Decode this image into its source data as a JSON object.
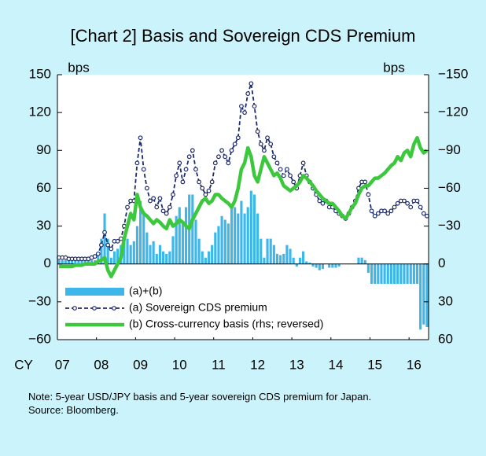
{
  "chart_data": {
    "type": "combo",
    "title": "[Chart 2] Basis and Sovereign CDS Premium",
    "ylabel": "bps",
    "y2label": "bps",
    "x_label": "CY",
    "categories": [
      "07",
      null,
      null,
      null,
      null,
      null,
      null,
      null,
      null,
      null,
      null,
      null,
      "08",
      null,
      null,
      null,
      null,
      null,
      null,
      null,
      null,
      null,
      null,
      null,
      "09",
      null,
      null,
      null,
      null,
      null,
      null,
      null,
      null,
      null,
      null,
      null,
      "10",
      null,
      null,
      null,
      null,
      null,
      null,
      null,
      null,
      null,
      null,
      null,
      "11",
      null,
      null,
      null,
      null,
      null,
      null,
      null,
      null,
      null,
      null,
      null,
      "12",
      null,
      null,
      null,
      null,
      null,
      null,
      null,
      null,
      null,
      null,
      null,
      "13",
      null,
      null,
      null,
      null,
      null,
      null,
      null,
      null,
      null,
      null,
      null,
      "14",
      null,
      null,
      null,
      null,
      null,
      null,
      null,
      null,
      null,
      null,
      null,
      "15",
      null,
      null,
      null,
      null,
      null,
      null,
      null,
      null,
      null,
      null,
      null,
      "16",
      null,
      null,
      null,
      null,
      null
    ],
    "series": [
      {
        "name": "(a)+(b)",
        "type": "bar",
        "color": "#3db6ea",
        "values": [
          3,
          3,
          3,
          3,
          3,
          3,
          3,
          3,
          3,
          3,
          3,
          3,
          8,
          20,
          40,
          20,
          5,
          10,
          12,
          15,
          18,
          20,
          15,
          18,
          30,
          50,
          40,
          25,
          15,
          18,
          8,
          15,
          10,
          8,
          10,
          22,
          38,
          45,
          32,
          45,
          55,
          55,
          35,
          20,
          10,
          5,
          10,
          15,
          25,
          30,
          38,
          35,
          32,
          45,
          45,
          40,
          50,
          40,
          45,
          58,
          55,
          40,
          20,
          5,
          20,
          20,
          15,
          8,
          7,
          8,
          15,
          12,
          5,
          -2,
          5,
          10,
          2,
          1,
          -2,
          -3,
          -5,
          -4,
          0,
          -3,
          -3,
          -3,
          -2,
          0,
          0,
          0,
          0,
          0,
          5,
          5,
          3,
          -7,
          -23,
          -30,
          -28,
          -28,
          -30,
          -35,
          -36,
          -35,
          -37,
          -32,
          -38,
          -42,
          -40,
          -50,
          -55,
          -52,
          -48,
          -50
        ]
      },
      {
        "name": "(a) Sovereign CDS premium",
        "type": "line",
        "dashed": true,
        "marker": "circle",
        "color": "#1c2a6e",
        "values": [
          5,
          5,
          5,
          4,
          4,
          4,
          4,
          4,
          4,
          4,
          5,
          6,
          8,
          15,
          25,
          15,
          12,
          18,
          18,
          20,
          30,
          45,
          50,
          50,
          80,
          100,
          75,
          60,
          50,
          52,
          45,
          52,
          42,
          40,
          45,
          55,
          70,
          80,
          65,
          75,
          85,
          90,
          75,
          65,
          60,
          55,
          58,
          65,
          80,
          85,
          90,
          85,
          80,
          90,
          95,
          100,
          125,
          120,
          135,
          143,
          125,
          105,
          95,
          90,
          100,
          95,
          85,
          80,
          75,
          70,
          75,
          70,
          65,
          60,
          70,
          80,
          70,
          65,
          60,
          55,
          50,
          48,
          50,
          45,
          45,
          42,
          40,
          38,
          36,
          40,
          45,
          50,
          60,
          65,
          65,
          55,
          42,
          38,
          40,
          42,
          42,
          40,
          42,
          45,
          48,
          50,
          50,
          48,
          45,
          50,
          50,
          45,
          40,
          38
        ]
      },
      {
        "name": "(b) Cross-currency basis (rhs; reversed)",
        "type": "line",
        "axis": "y2",
        "color": "#3cc83c",
        "values": [
          2,
          2,
          2,
          2,
          2,
          1,
          1,
          1,
          0,
          0,
          0,
          0,
          -2,
          -3,
          -5,
          5,
          10,
          5,
          0,
          -5,
          -20,
          -30,
          -40,
          -35,
          -55,
          -45,
          -40,
          -38,
          -35,
          -32,
          -35,
          -33,
          -30,
          -28,
          -35,
          -30,
          -32,
          -35,
          -33,
          -30,
          -28,
          -35,
          -40,
          -45,
          -50,
          -52,
          -48,
          -50,
          -55,
          -55,
          -52,
          -50,
          -48,
          -45,
          -50,
          -60,
          -75,
          -80,
          -92,
          -85,
          -70,
          -65,
          -75,
          -85,
          -80,
          -75,
          -70,
          -72,
          -68,
          -62,
          -60,
          -58,
          -60,
          -62,
          -65,
          -70,
          -68,
          -65,
          -62,
          -58,
          -55,
          -52,
          -50,
          -48,
          -48,
          -45,
          -42,
          -38,
          -36,
          -40,
          -45,
          -48,
          -55,
          -60,
          -62,
          -62,
          -65,
          -68,
          -68,
          -70,
          -72,
          -75,
          -78,
          -80,
          -85,
          -82,
          -88,
          -90,
          -85,
          -95,
          -100,
          -92,
          -88,
          -90
        ]
      }
    ],
    "ylim": [
      -60,
      150
    ],
    "yticks": [
      150,
      120,
      90,
      60,
      30,
      0,
      {
        "value": -30,
        "label": "−30"
      },
      {
        "value": -60,
        "label": "−60"
      }
    ],
    "y2lim": [
      60,
      -150
    ],
    "y2ticks": [
      {
        "value": -150,
        "label": "−150"
      },
      {
        "value": -120,
        "label": "−120"
      },
      {
        "value": -90,
        "label": "−90"
      },
      {
        "value": -60,
        "label": "−60"
      },
      {
        "value": -30,
        "label": "−30"
      },
      0,
      30,
      60
    ],
    "legend": "lower left"
  },
  "notes": [
    "Note: 5-year USD/JPY basis and 5-year sovereign CDS premium for Japan.",
    "Source: Bloomberg."
  ]
}
